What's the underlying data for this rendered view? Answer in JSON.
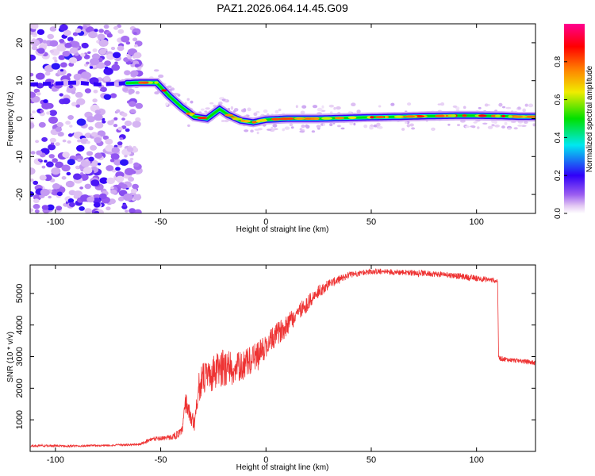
{
  "title": "PAZ1.2026.064.14.45.G09",
  "chart_data": [
    {
      "type": "heatmap",
      "xlabel": "Height of straight line (km)",
      "ylabel": "Frequency (Hz)",
      "xlim": [
        -112,
        128
      ],
      "ylim": [
        -25,
        25
      ],
      "xticks": [
        -100,
        -50,
        0,
        50,
        100
      ],
      "yticks": [
        -20,
        -10,
        0,
        10,
        20
      ],
      "xtick_labels": [
        "-100",
        "-50",
        "0",
        "50",
        "100"
      ],
      "ytick_labels": [
        "-20",
        "-10",
        "0",
        "10",
        "20"
      ],
      "ridge": {
        "x": [
          -112,
          -90,
          -80,
          -60,
          -52,
          -46,
          -40,
          -34,
          -28,
          -22,
          -18,
          -12,
          -6,
          0,
          10,
          25,
          45,
          65,
          80,
          95,
          110,
          120,
          128
        ],
        "y": [
          9,
          9.5,
          9,
          9.5,
          9.5,
          6,
          3,
          0.5,
          0,
          2.5,
          1,
          -0.5,
          -1,
          -0.3,
          0,
          0,
          0.3,
          0.5,
          0.7,
          0.8,
          0.7,
          0.5,
          0.5
        ]
      },
      "noise_region_x": [
        -112,
        -60
      ],
      "colorbar": {
        "label": "Normalized spectral amplitude",
        "range": [
          0,
          1
        ],
        "ticks": [
          0.0,
          0.2,
          0.4,
          0.6,
          0.8
        ],
        "tick_labels": [
          "0.0",
          "0.2",
          "0.4",
          "0.6",
          "0.8"
        ],
        "colors": [
          "#ffffff",
          "#e3c8f3",
          "#9a5cf0",
          "#3000f8",
          "#00e8f0",
          "#00e000",
          "#f0ec00",
          "#ff8000",
          "#ff0000",
          "#ff0090"
        ]
      }
    },
    {
      "type": "line",
      "xlabel": "Height of straight line (km)",
      "ylabel": "SNR (10 * v/v)",
      "xlim": [
        -112,
        128
      ],
      "ylim": [
        0,
        5900
      ],
      "xticks": [
        -100,
        -50,
        0,
        50,
        100
      ],
      "yticks": [
        1000,
        2000,
        3000,
        4000,
        5000
      ],
      "xtick_labels": [
        "-100",
        "-50",
        "0",
        "50",
        "100"
      ],
      "ytick_labels": [
        "1000",
        "2000",
        "3000",
        "4000",
        "5000"
      ],
      "color": "#ee3333",
      "series": [
        {
          "name": "SNR",
          "x": [
            -112,
            -90,
            -70,
            -60,
            -55,
            -45,
            -40,
            -38,
            -36,
            -34,
            -32,
            -30,
            -26,
            -22,
            -18,
            -15,
            -10,
            -5,
            0,
            5,
            10,
            15,
            20,
            25,
            30,
            35,
            40,
            50,
            60,
            70,
            80,
            90,
            100,
            110,
            110.5,
            115,
            120,
            128
          ],
          "y": [
            180,
            170,
            200,
            220,
            380,
            450,
            600,
            1600,
            1100,
            900,
            2000,
            2300,
            2400,
            2600,
            2700,
            2600,
            2750,
            3000,
            3300,
            3700,
            4000,
            4400,
            4700,
            5050,
            5300,
            5450,
            5600,
            5700,
            5680,
            5650,
            5620,
            5560,
            5480,
            5400,
            2950,
            2900,
            2870,
            2800
          ],
          "noise": [
            40,
            35,
            35,
            40,
            60,
            80,
            160,
            300,
            250,
            250,
            450,
            500,
            550,
            600,
            600,
            500,
            450,
            450,
            400,
            350,
            350,
            300,
            250,
            200,
            150,
            120,
            100,
            90,
            90,
            90,
            90,
            90,
            90,
            80,
            80,
            70,
            70,
            70
          ]
        }
      ]
    }
  ]
}
